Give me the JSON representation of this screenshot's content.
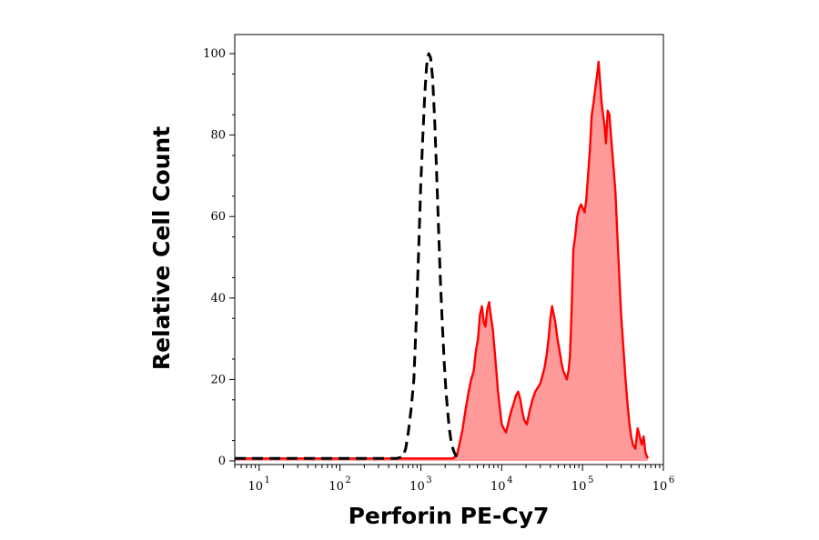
{
  "chart_data": {
    "type": "area",
    "xlabel": "Perforin PE-Cy7",
    "ylabel": "Relative Cell Count",
    "x_scale": "log",
    "xlim": [
      5,
      1000000
    ],
    "ylim": [
      0,
      104
    ],
    "y_ticks": [
      0,
      20,
      40,
      60,
      80,
      100
    ],
    "x_ticks": [
      {
        "value": 10,
        "base": "10",
        "exp": "1"
      },
      {
        "value": 100,
        "base": "10",
        "exp": "2"
      },
      {
        "value": 1000,
        "base": "10",
        "exp": "3"
      },
      {
        "value": 10000,
        "base": "10",
        "exp": "4"
      },
      {
        "value": 100000,
        "base": "10",
        "exp": "5"
      },
      {
        "value": 1000000,
        "base": "10",
        "exp": "6"
      }
    ],
    "grid": false,
    "series": [
      {
        "style": "dashed",
        "color": "#000000",
        "fill": "none",
        "points": [
          [
            5,
            0.6
          ],
          [
            500,
            0.6
          ],
          [
            600,
            1
          ],
          [
            650,
            3
          ],
          [
            700,
            7
          ],
          [
            760,
            13
          ],
          [
            820,
            20
          ],
          [
            880,
            35
          ],
          [
            940,
            52
          ],
          [
            1000,
            68
          ],
          [
            1060,
            80
          ],
          [
            1120,
            90
          ],
          [
            1180,
            97
          ],
          [
            1250,
            100
          ],
          [
            1320,
            99
          ],
          [
            1400,
            94
          ],
          [
            1480,
            84
          ],
          [
            1560,
            72
          ],
          [
            1650,
            58
          ],
          [
            1750,
            44
          ],
          [
            1850,
            33
          ],
          [
            1950,
            24
          ],
          [
            2050,
            17
          ],
          [
            2150,
            12
          ],
          [
            2250,
            8
          ],
          [
            2400,
            4
          ],
          [
            2600,
            2
          ],
          [
            2800,
            1
          ],
          [
            3200,
            0.6
          ]
        ]
      },
      {
        "style": "solid",
        "color": "#ff0000",
        "fill": "#ff9a9a",
        "points": [
          [
            5,
            0.6
          ],
          [
            2500,
            0.6
          ],
          [
            2800,
            1.5
          ],
          [
            3000,
            4
          ],
          [
            3300,
            8
          ],
          [
            3600,
            13
          ],
          [
            3900,
            17
          ],
          [
            4200,
            20
          ],
          [
            4500,
            22
          ],
          [
            4800,
            27
          ],
          [
            5100,
            30
          ],
          [
            5400,
            36
          ],
          [
            5700,
            38
          ],
          [
            6000,
            34
          ],
          [
            6300,
            33
          ],
          [
            6600,
            37
          ],
          [
            7000,
            39
          ],
          [
            7400,
            35
          ],
          [
            7800,
            32
          ],
          [
            8200,
            27
          ],
          [
            8600,
            22
          ],
          [
            9000,
            17
          ],
          [
            9500,
            13
          ],
          [
            10000,
            9
          ],
          [
            10600,
            8
          ],
          [
            11300,
            7
          ],
          [
            12000,
            9
          ],
          [
            13000,
            12
          ],
          [
            14000,
            14
          ],
          [
            15000,
            16
          ],
          [
            16000,
            17
          ],
          [
            17000,
            15
          ],
          [
            18000,
            12
          ],
          [
            19000,
            10
          ],
          [
            20500,
            9
          ],
          [
            22000,
            12
          ],
          [
            24000,
            15
          ],
          [
            26000,
            17
          ],
          [
            28000,
            18
          ],
          [
            30000,
            19
          ],
          [
            32000,
            21
          ],
          [
            34000,
            23
          ],
          [
            36000,
            26
          ],
          [
            38000,
            30
          ],
          [
            40000,
            35
          ],
          [
            42000,
            38
          ],
          [
            44000,
            36
          ],
          [
            46000,
            34
          ],
          [
            49000,
            30
          ],
          [
            52000,
            27
          ],
          [
            55000,
            24
          ],
          [
            58000,
            22
          ],
          [
            61000,
            21
          ],
          [
            64000,
            20
          ],
          [
            67000,
            22
          ],
          [
            70000,
            26
          ],
          [
            73000,
            36
          ],
          [
            77000,
            52
          ],
          [
            81000,
            55
          ],
          [
            86000,
            60
          ],
          [
            91000,
            62
          ],
          [
            96000,
            63
          ],
          [
            101000,
            62
          ],
          [
            106000,
            61
          ],
          [
            111000,
            64
          ],
          [
            117000,
            70
          ],
          [
            123000,
            76
          ],
          [
            130000,
            85
          ],
          [
            137000,
            88
          ],
          [
            145000,
            92
          ],
          [
            152000,
            95
          ],
          [
            158000,
            98
          ],
          [
            165000,
            93
          ],
          [
            172000,
            88
          ],
          [
            180000,
            85
          ],
          [
            188000,
            82
          ],
          [
            195000,
            78
          ],
          [
            205000,
            86
          ],
          [
            215000,
            85
          ],
          [
            225000,
            80
          ],
          [
            240000,
            73
          ],
          [
            255000,
            66
          ],
          [
            270000,
            55
          ],
          [
            285000,
            45
          ],
          [
            300000,
            36
          ],
          [
            320000,
            28
          ],
          [
            340000,
            20
          ],
          [
            360000,
            14
          ],
          [
            380000,
            9
          ],
          [
            400000,
            6
          ],
          [
            420000,
            4
          ],
          [
            450000,
            3
          ],
          [
            480000,
            8
          ],
          [
            510000,
            6
          ],
          [
            540000,
            4
          ],
          [
            570000,
            6
          ],
          [
            600000,
            2
          ],
          [
            640000,
            0.6
          ]
        ]
      }
    ]
  }
}
